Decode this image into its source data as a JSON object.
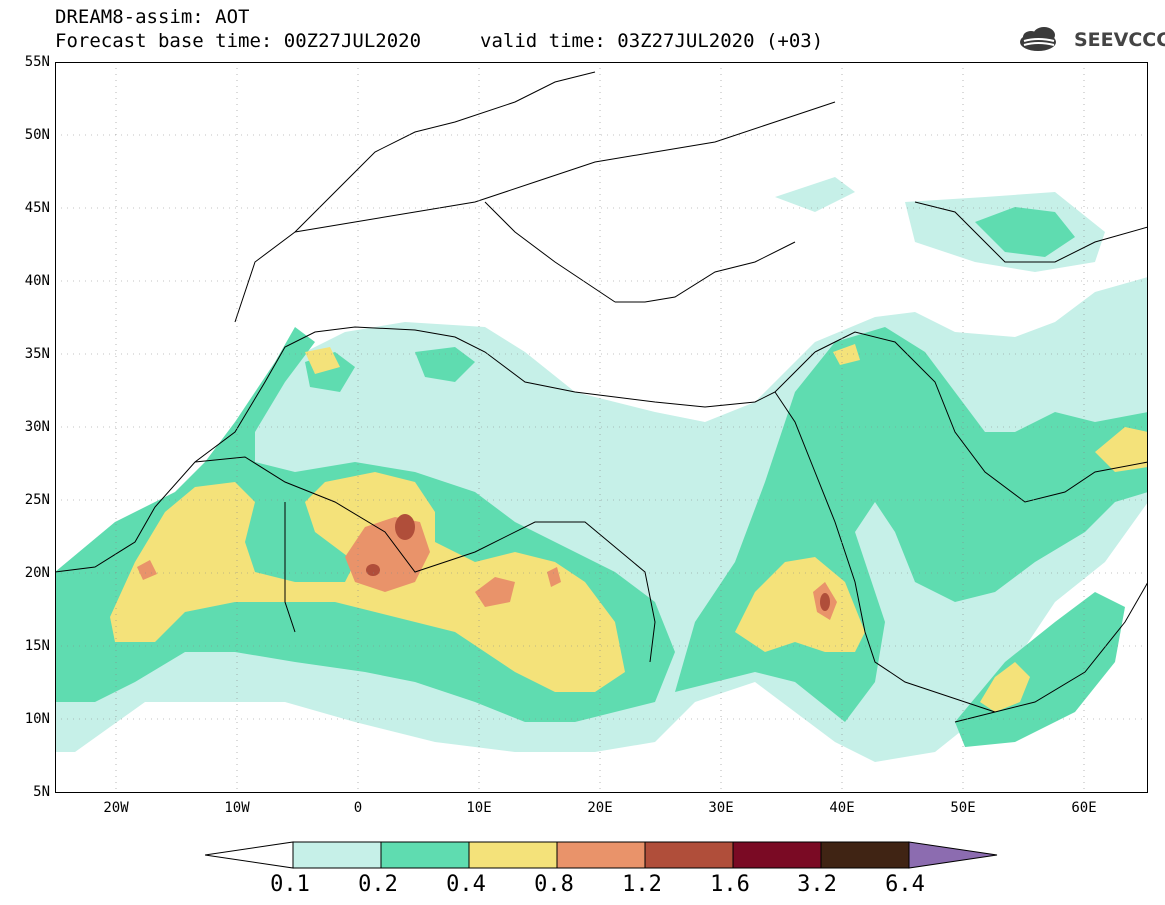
{
  "header": {
    "title_line1": "DREAM8-assim: AOT",
    "title_line2": "Forecast base time: 00Z27JUL2020",
    "valid_time": "valid time: 03Z27JUL2020 (+03)"
  },
  "logo": {
    "text": "SEEVCCC",
    "icon": "cloud-icon"
  },
  "map": {
    "lat_labels": [
      "55N",
      "50N",
      "45N",
      "40N",
      "35N",
      "30N",
      "25N",
      "20N",
      "15N",
      "10N",
      "5N"
    ],
    "lon_labels": [
      "20W",
      "10W",
      "0",
      "10E",
      "20E",
      "30E",
      "40E",
      "50E",
      "60E"
    ]
  },
  "legend": {
    "levels": [
      "0.1",
      "0.2",
      "0.4",
      "0.8",
      "1.2",
      "1.6",
      "3.2",
      "6.4"
    ],
    "colors": [
      "#ffffff",
      "#c6f0e8",
      "#5fdcb0",
      "#f4e27a",
      "#e9936a",
      "#b04e3a",
      "#7a0a24",
      "#402414",
      "#8c6cb0"
    ]
  }
}
